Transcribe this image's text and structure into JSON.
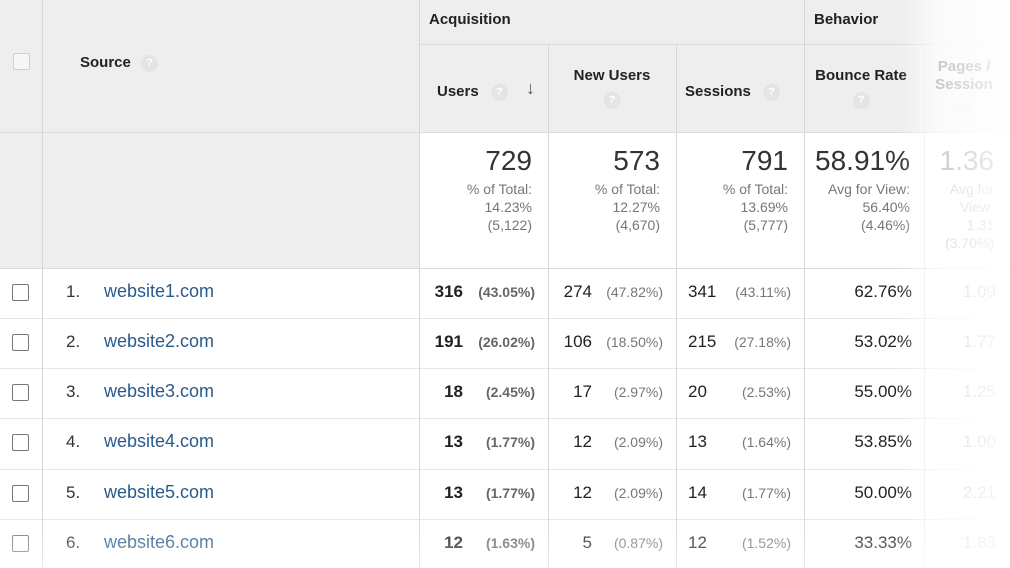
{
  "header": {
    "source_label": "Source",
    "acquisition_label": "Acquisition",
    "behavior_label": "Behavior",
    "help_glyph": "?",
    "sort_glyph": "↓",
    "columns": {
      "users": "Users",
      "new_users": "New Users",
      "sessions": "Sessions",
      "bounce_rate": "Bounce Rate",
      "pages_session_1": "Pages /",
      "pages_session_2": "Session"
    }
  },
  "totals": {
    "users": {
      "value": "729",
      "l1": "% of Total:",
      "l2": "14.23%",
      "l3": "(5,122)"
    },
    "new_users": {
      "value": "573",
      "l1": "% of Total:",
      "l2": "12.27%",
      "l3": "(4,670)"
    },
    "sessions": {
      "value": "791",
      "l1": "% of Total:",
      "l2": "13.69%",
      "l3": "(5,777)"
    },
    "bounce_rate": {
      "value": "58.91%",
      "l1": "Avg for View:",
      "l2": "56.40%",
      "l3": "(4.46%)"
    },
    "pages_session": {
      "value": "1.36",
      "l1": "Avg for",
      "l2": "View:",
      "l3": "1.31",
      "l4": "(3.70%)"
    }
  },
  "rows": [
    {
      "num": "1.",
      "source": "website1.com",
      "users": "316",
      "users_pct": "(43.05%)",
      "new_users": "274",
      "new_users_pct": "(47.82%)",
      "sessions": "341",
      "sessions_pct": "(43.11%)",
      "bounce": "62.76%",
      "pages": "1.09"
    },
    {
      "num": "2.",
      "source": "website2.com",
      "users": "191",
      "users_pct": "(26.02%)",
      "new_users": "106",
      "new_users_pct": "(18.50%)",
      "sessions": "215",
      "sessions_pct": "(27.18%)",
      "bounce": "53.02%",
      "pages": "1.77"
    },
    {
      "num": "3.",
      "source": "website3.com",
      "users": "18",
      "users_pct": "(2.45%)",
      "new_users": "17",
      "new_users_pct": "(2.97%)",
      "sessions": "20",
      "sessions_pct": "(2.53%)",
      "bounce": "55.00%",
      "pages": "1.25"
    },
    {
      "num": "4.",
      "source": "website4.com",
      "users": "13",
      "users_pct": "(1.77%)",
      "new_users": "12",
      "new_users_pct": "(2.09%)",
      "sessions": "13",
      "sessions_pct": "(1.64%)",
      "bounce": "53.85%",
      "pages": "1.00"
    },
    {
      "num": "5.",
      "source": "website5.com",
      "users": "13",
      "users_pct": "(1.77%)",
      "new_users": "12",
      "new_users_pct": "(2.09%)",
      "sessions": "14",
      "sessions_pct": "(1.77%)",
      "bounce": "50.00%",
      "pages": "2.21"
    },
    {
      "num": "6.",
      "source": "website6.com",
      "users": "12",
      "users_pct": "(1.63%)",
      "new_users": "5",
      "new_users_pct": "(0.87%)",
      "sessions": "12",
      "sessions_pct": "(1.52%)",
      "bounce": "33.33%",
      "pages": "1.83"
    }
  ],
  "colors": {
    "link": "#2a5a8a",
    "header_bg": "#eeeeee"
  }
}
